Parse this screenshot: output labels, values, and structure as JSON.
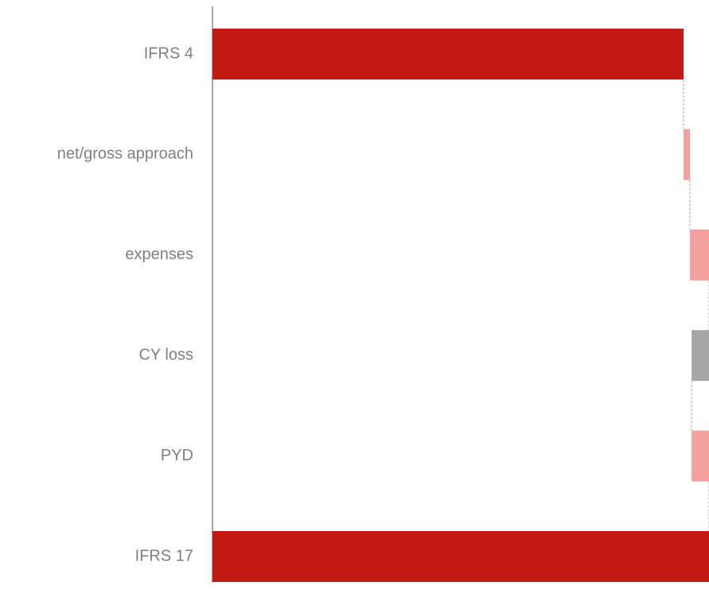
{
  "chart_data": {
    "type": "waterfall",
    "categories": [
      "IFRS 4",
      "net/gross approach",
      "expenses",
      "CY loss",
      "PYD",
      "IFRS 17"
    ],
    "values": [
      100,
      1.35,
      4.05,
      -3.7,
      3.7,
      105.4
    ],
    "measures": [
      "absolute",
      "relative",
      "relative",
      "relative",
      "relative",
      "absolute"
    ],
    "colors": [
      "#c21915",
      "#f4a09f",
      "#f4a09f",
      "#a6a6a6",
      "#f4a09f",
      "#c21915"
    ],
    "xlim": [
      0,
      105.4
    ]
  }
}
